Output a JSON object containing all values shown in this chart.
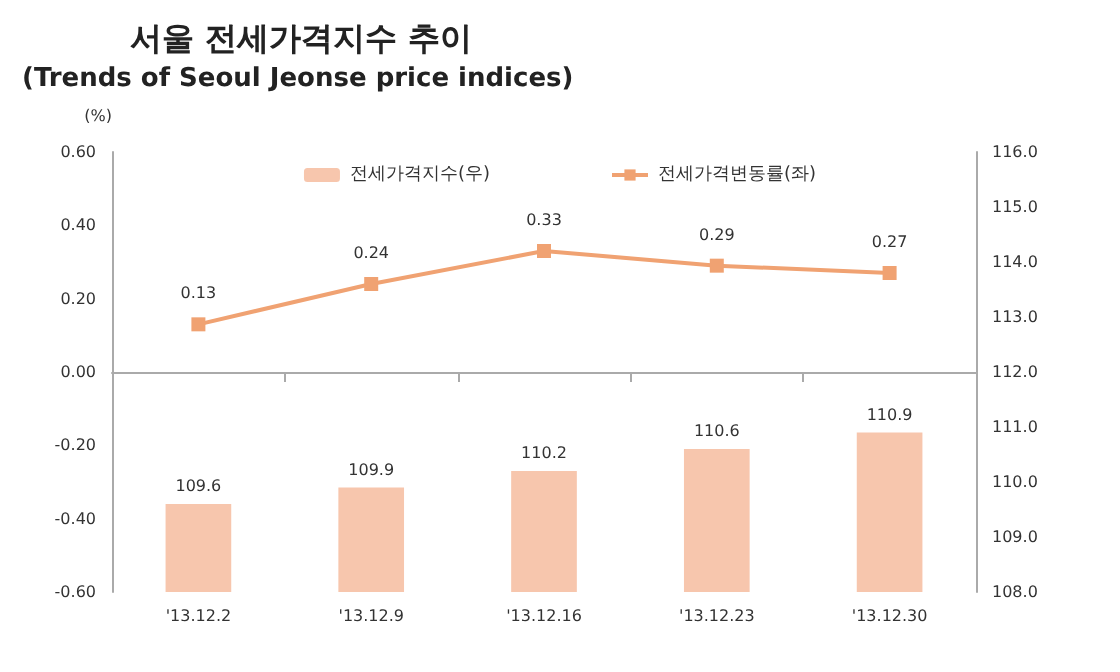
{
  "chart_data": {
    "type": "bar",
    "title": "서울 전세가격지수 추이",
    "subtitle": "(Trends of Seoul Jeonse price indices)",
    "ylabel": "(%)",
    "categories": [
      "'13.12.2",
      "'13.12.9",
      "'13.12.16",
      "'13.12.23",
      "'13.12.30"
    ],
    "series": [
      {
        "name": "전세가격지수(우)",
        "axis": "y2",
        "color": "#f7c6ad",
        "values": [
          109.6,
          109.9,
          110.2,
          110.6,
          110.9
        ]
      },
      {
        "name": "전세가격변동률(좌)",
        "type": "line",
        "color": "#f0a272",
        "values": [
          0.13,
          0.24,
          0.33,
          0.29,
          0.27
        ]
      }
    ],
    "ylim": [
      -0.6,
      0.6
    ],
    "yticks": [
      {
        "value": -0.6,
        "label": "-0.60"
      },
      {
        "value": -0.4,
        "label": "-0.40"
      },
      {
        "value": -0.2,
        "label": "-0.20"
      },
      {
        "value": 0,
        "label": "0.00"
      },
      {
        "value": 0.2,
        "label": "0.20"
      },
      {
        "value": 0.4,
        "label": "0.40"
      },
      {
        "value": 0.6,
        "label": "0.60"
      }
    ],
    "y2lim": [
      108,
      116
    ],
    "y2ticks": [
      {
        "value": 108,
        "label": "108.0"
      },
      {
        "value": 109,
        "label": "109.0"
      },
      {
        "value": 110,
        "label": "110.0"
      },
      {
        "value": 111,
        "label": "111.0"
      },
      {
        "value": 112,
        "label": "112.0"
      },
      {
        "value": 113,
        "label": "113.0"
      },
      {
        "value": 114,
        "label": "114.0"
      },
      {
        "value": 115,
        "label": "115.0"
      },
      {
        "value": 116,
        "label": "116.0"
      }
    ],
    "data_labels": true,
    "legend": "top",
    "marker": "square",
    "line_style": "solid"
  }
}
